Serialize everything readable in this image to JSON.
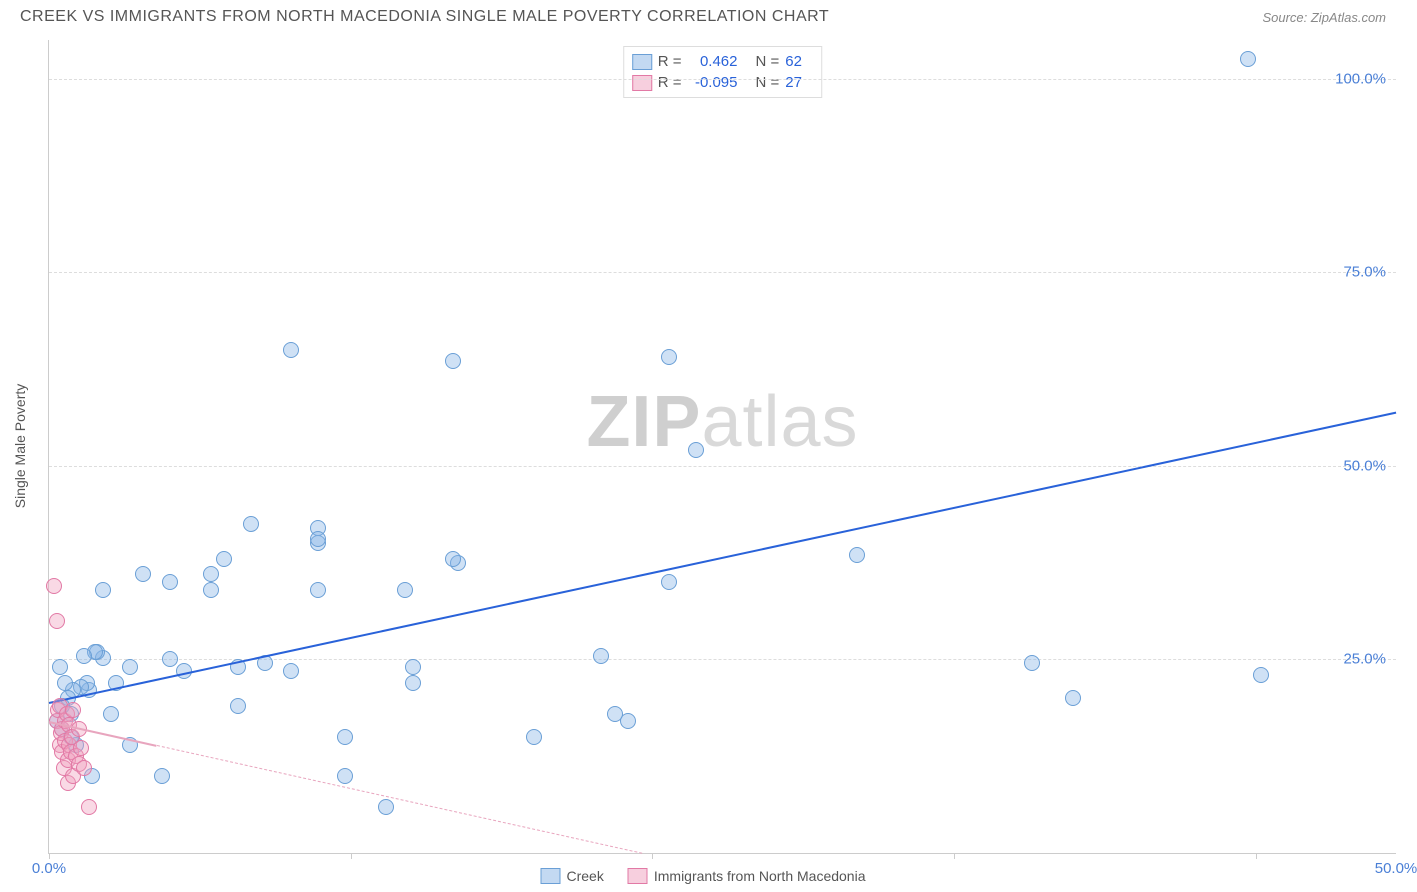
{
  "header": {
    "title": "CREEK VS IMMIGRANTS FROM NORTH MACEDONIA SINGLE MALE POVERTY CORRELATION CHART",
    "source": "Source: ZipAtlas.com"
  },
  "ylabel": "Single Male Poverty",
  "watermark_a": "ZIP",
  "watermark_b": "atlas",
  "chart": {
    "type": "scatter",
    "xlim": [
      0,
      50
    ],
    "ylim": [
      0,
      105
    ],
    "background_color": "#ffffff",
    "grid_color": "#dddddd",
    "yticks": [
      {
        "v": 25,
        "label": "25.0%"
      },
      {
        "v": 50,
        "label": "50.0%"
      },
      {
        "v": 75,
        "label": "75.0%"
      },
      {
        "v": 100,
        "label": "100.0%"
      }
    ],
    "xticks_minor": [
      0,
      11.2,
      22.4,
      33.6,
      44.8
    ],
    "xticks": [
      {
        "v": 0,
        "label": "0.0%"
      },
      {
        "v": 50,
        "label": "50.0%"
      }
    ],
    "series": [
      {
        "name": "Creek",
        "class": "blue",
        "color_fill": "#87b4e666",
        "color_stroke": "#6a9fd6",
        "marker_size": 16,
        "points": [
          [
            44.5,
            102.5
          ],
          [
            45,
            23
          ],
          [
            38,
            20
          ],
          [
            36.5,
            24.5
          ],
          [
            30,
            38.5
          ],
          [
            23,
            64
          ],
          [
            21.5,
            17
          ],
          [
            23,
            35
          ],
          [
            21,
            18
          ],
          [
            20.5,
            25.5
          ],
          [
            24,
            52
          ],
          [
            18,
            15
          ],
          [
            15,
            63.5
          ],
          [
            15.2,
            37.5
          ],
          [
            15,
            38
          ],
          [
            13.2,
            34
          ],
          [
            13.5,
            22
          ],
          [
            13.5,
            24
          ],
          [
            12.5,
            6
          ],
          [
            11,
            15
          ],
          [
            11,
            10
          ],
          [
            10,
            42
          ],
          [
            10,
            34
          ],
          [
            10,
            40
          ],
          [
            10,
            40.5
          ],
          [
            9,
            65
          ],
          [
            9,
            23.5
          ],
          [
            8,
            24.5
          ],
          [
            7.5,
            42.5
          ],
          [
            7,
            19
          ],
          [
            7,
            24
          ],
          [
            6.5,
            38
          ],
          [
            6,
            34
          ],
          [
            6,
            36
          ],
          [
            4.5,
            35
          ],
          [
            5,
            23.5
          ],
          [
            4.2,
            10
          ],
          [
            4.5,
            25
          ],
          [
            3.5,
            36
          ],
          [
            3,
            24
          ],
          [
            3,
            14
          ],
          [
            2.5,
            22
          ],
          [
            2.3,
            18
          ],
          [
            2,
            25.2
          ],
          [
            2,
            34
          ],
          [
            1.8,
            26
          ],
          [
            1.7,
            26
          ],
          [
            1.6,
            10
          ],
          [
            1.5,
            21
          ],
          [
            1.4,
            22
          ],
          [
            1.3,
            25.5
          ],
          [
            1.2,
            21.5
          ],
          [
            1,
            14
          ],
          [
            0.9,
            21
          ],
          [
            0.8,
            18
          ],
          [
            0.8,
            15
          ],
          [
            0.7,
            20
          ],
          [
            0.6,
            22
          ],
          [
            0.5,
            19
          ],
          [
            0.5,
            16
          ],
          [
            0.4,
            24
          ],
          [
            0.3,
            17
          ]
        ],
        "trend": {
          "x1": 0,
          "y1": 19.5,
          "x2": 50,
          "y2": 57,
          "color": "#2962d9",
          "width": 2,
          "solid": true
        }
      },
      {
        "name": "Immigrants from North Macedonia",
        "class": "pink",
        "color_fill": "#f0a0be66",
        "color_stroke": "#e279a5",
        "marker_size": 16,
        "points": [
          [
            0.2,
            34.5
          ],
          [
            0.3,
            30
          ],
          [
            0.3,
            17
          ],
          [
            0.35,
            18.5
          ],
          [
            0.4,
            14
          ],
          [
            0.4,
            19
          ],
          [
            0.45,
            15.5
          ],
          [
            0.5,
            16
          ],
          [
            0.5,
            13
          ],
          [
            0.55,
            11
          ],
          [
            0.6,
            14.5
          ],
          [
            0.6,
            17
          ],
          [
            0.65,
            18
          ],
          [
            0.7,
            12
          ],
          [
            0.7,
            9
          ],
          [
            0.75,
            16.5
          ],
          [
            0.75,
            14
          ],
          [
            0.8,
            13
          ],
          [
            0.85,
            15
          ],
          [
            0.9,
            10
          ],
          [
            0.9,
            18.5
          ],
          [
            1.0,
            12.5
          ],
          [
            1.1,
            11.5
          ],
          [
            1.1,
            16
          ],
          [
            1.2,
            13.5
          ],
          [
            1.3,
            11
          ],
          [
            1.5,
            6
          ]
        ],
        "trend": {
          "x1": 0,
          "y1": 17,
          "x2": 22,
          "y2": 0,
          "color": "#e8a5be",
          "width": 1,
          "solid": false,
          "solid_until_x": 4
        }
      }
    ]
  },
  "stats": [
    {
      "class": "blue",
      "r_label": "R =",
      "r": "0.462",
      "n_label": "N =",
      "n": "62"
    },
    {
      "class": "pink",
      "r_label": "R =",
      "r": "-0.095",
      "n_label": "N =",
      "n": "27"
    }
  ],
  "legend": [
    {
      "class": "blue",
      "label": "Creek"
    },
    {
      "class": "pink",
      "label": "Immigrants from North Macedonia"
    }
  ]
}
